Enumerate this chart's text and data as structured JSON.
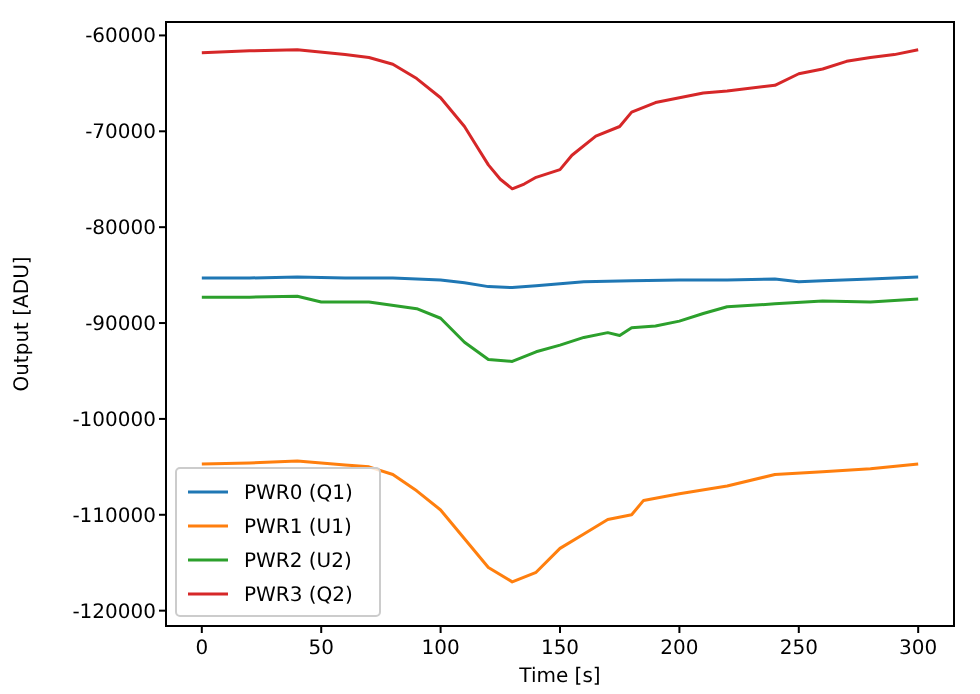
{
  "chart_data": {
    "type": "line",
    "xlabel": "Time [s]",
    "ylabel": "Output [ADU]",
    "xlim": [
      -15,
      315
    ],
    "ylim": [
      -121600,
      -58600
    ],
    "xticks": [
      0,
      50,
      100,
      150,
      200,
      250,
      300
    ],
    "yticks": [
      -120000,
      -110000,
      -100000,
      -90000,
      -80000,
      -70000,
      -60000
    ],
    "grid": false,
    "legend": "bottom left",
    "series": [
      {
        "name": "PWR0 (Q1)",
        "color": "#1f77b4",
        "x": [
          0,
          20,
          40,
          60,
          80,
          100,
          110,
          120,
          130,
          140,
          150,
          160,
          180,
          200,
          220,
          240,
          250,
          260,
          280,
          300
        ],
        "values": [
          -85300,
          -85300,
          -85200,
          -85300,
          -85300,
          -85500,
          -85800,
          -86200,
          -86300,
          -86100,
          -85900,
          -85700,
          -85600,
          -85500,
          -85500,
          -85400,
          -85700,
          -85600,
          -85400,
          -85200
        ]
      },
      {
        "name": "PWR1 (U1)",
        "color": "#ff7f0e",
        "x": [
          0,
          20,
          40,
          60,
          70,
          80,
          90,
          100,
          110,
          120,
          130,
          140,
          150,
          160,
          170,
          180,
          185,
          200,
          220,
          240,
          260,
          280,
          300
        ],
        "values": [
          -104700,
          -104600,
          -104400,
          -104800,
          -105000,
          -105800,
          -107500,
          -109500,
          -112500,
          -115500,
          -117000,
          -116000,
          -113500,
          -112000,
          -110500,
          -110000,
          -108500,
          -107800,
          -107000,
          -105800,
          -105500,
          -105200,
          -104700
        ]
      },
      {
        "name": "PWR2 (U2)",
        "color": "#2ca02c",
        "x": [
          0,
          20,
          40,
          50,
          70,
          90,
          100,
          110,
          120,
          130,
          140,
          150,
          160,
          170,
          175,
          180,
          190,
          200,
          210,
          220,
          240,
          260,
          280,
          300
        ],
        "values": [
          -87300,
          -87300,
          -87200,
          -87800,
          -87800,
          -88500,
          -89500,
          -92000,
          -93800,
          -94000,
          -93000,
          -92300,
          -91500,
          -91000,
          -91300,
          -90500,
          -90300,
          -89800,
          -89000,
          -88300,
          -88000,
          -87700,
          -87800,
          -87500
        ]
      },
      {
        "name": "PWR3 (Q2)",
        "color": "#d62728",
        "x": [
          0,
          20,
          40,
          60,
          70,
          80,
          90,
          100,
          110,
          115,
          120,
          125,
          130,
          135,
          140,
          150,
          155,
          165,
          175,
          180,
          190,
          200,
          210,
          220,
          240,
          250,
          260,
          270,
          280,
          290,
          300
        ],
        "values": [
          -61800,
          -61600,
          -61500,
          -62000,
          -62300,
          -63000,
          -64500,
          -66500,
          -69500,
          -71500,
          -73500,
          -75000,
          -76000,
          -75500,
          -74800,
          -74000,
          -72500,
          -70500,
          -69500,
          -68000,
          -67000,
          -66500,
          -66000,
          -65800,
          -65200,
          -64000,
          -63500,
          -62700,
          -62300,
          -62000,
          -61500
        ]
      }
    ]
  }
}
